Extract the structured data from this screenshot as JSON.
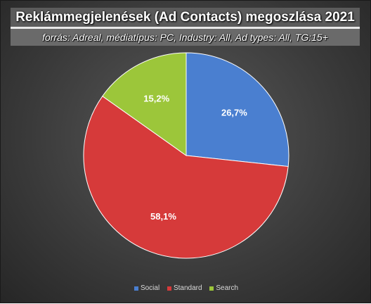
{
  "chart_data": {
    "type": "pie",
    "title": "Reklámmegjelenések (Ad Contacts) megoszlása 2021",
    "subtitle": "forrás: Adreal, médiatípus: PC, Industry: All, Ad types: All, TG:15+",
    "categories": [
      "Social",
      "Standard",
      "Search"
    ],
    "values": [
      26.7,
      58.1,
      15.2
    ],
    "labels": [
      "26,7%",
      "58,1%",
      "15,2%"
    ],
    "colors": [
      "#4a7fd0",
      "#d63a3a",
      "#9cc63a"
    ],
    "legend_position": "bottom"
  }
}
